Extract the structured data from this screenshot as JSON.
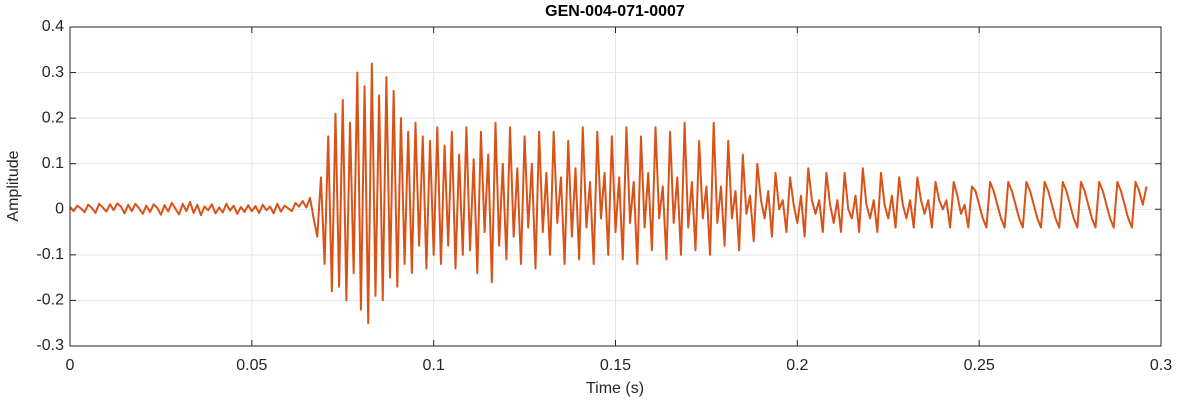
{
  "chart_data": {
    "type": "line",
    "title": "GEN-004-071-0007",
    "x_label": "Time (s)",
    "y_label": "Amplitude",
    "xlim": [
      0,
      0.3
    ],
    "xticks": [
      0,
      0.05,
      0.1,
      0.15,
      0.2,
      0.25,
      0.3
    ],
    "ylim": [
      -0.3,
      0.4
    ],
    "yticks": [
      -0.3,
      -0.2,
      -0.1,
      0,
      0.1,
      0.2,
      0.3,
      0.4
    ],
    "grid": true,
    "x": [
      0,
      0.001,
      0.002,
      0.003,
      0.004,
      0.005,
      0.006,
      0.007,
      0.008,
      0.009,
      0.01,
      0.011,
      0.012,
      0.013,
      0.014,
      0.015,
      0.016,
      0.017,
      0.018,
      0.019,
      0.02,
      0.021,
      0.022,
      0.023,
      0.024,
      0.025,
      0.026,
      0.027,
      0.028,
      0.029,
      0.03,
      0.031,
      0.032,
      0.033,
      0.034,
      0.035,
      0.036,
      0.037,
      0.038,
      0.039,
      0.04,
      0.041,
      0.042,
      0.043,
      0.044,
      0.045,
      0.046,
      0.047,
      0.048,
      0.049,
      0.05,
      0.051,
      0.052,
      0.053,
      0.054,
      0.055,
      0.056,
      0.057,
      0.058,
      0.059,
      0.06,
      0.061,
      0.062,
      0.063,
      0.064,
      0.065,
      0.066,
      0.067,
      0.068,
      0.069,
      0.07,
      0.071,
      0.072,
      0.073,
      0.074,
      0.075,
      0.076,
      0.077,
      0.078,
      0.079,
      0.08,
      0.081,
      0.082,
      0.083,
      0.084,
      0.085,
      0.086,
      0.087,
      0.088,
      0.089,
      0.09,
      0.091,
      0.092,
      0.093,
      0.094,
      0.095,
      0.096,
      0.097,
      0.098,
      0.099,
      0.1,
      0.101,
      0.102,
      0.103,
      0.104,
      0.105,
      0.106,
      0.107,
      0.108,
      0.109,
      0.11,
      0.111,
      0.112,
      0.113,
      0.114,
      0.115,
      0.116,
      0.117,
      0.118,
      0.119,
      0.12,
      0.121,
      0.122,
      0.123,
      0.124,
      0.125,
      0.126,
      0.127,
      0.128,
      0.129,
      0.13,
      0.131,
      0.132,
      0.133,
      0.134,
      0.135,
      0.136,
      0.137,
      0.138,
      0.139,
      0.14,
      0.141,
      0.142,
      0.143,
      0.144,
      0.145,
      0.146,
      0.147,
      0.148,
      0.149,
      0.15,
      0.151,
      0.152,
      0.153,
      0.154,
      0.155,
      0.156,
      0.157,
      0.158,
      0.159,
      0.16,
      0.161,
      0.162,
      0.163,
      0.164,
      0.165,
      0.166,
      0.167,
      0.168,
      0.169,
      0.17,
      0.171,
      0.172,
      0.173,
      0.174,
      0.175,
      0.176,
      0.177,
      0.178,
      0.179,
      0.18,
      0.181,
      0.182,
      0.183,
      0.184,
      0.185,
      0.186,
      0.187,
      0.188,
      0.189,
      0.19,
      0.191,
      0.192,
      0.193,
      0.194,
      0.195,
      0.196,
      0.197,
      0.198,
      0.199,
      0.2,
      0.201,
      0.202,
      0.203,
      0.204,
      0.205,
      0.206,
      0.207,
      0.208,
      0.209,
      0.21,
      0.211,
      0.212,
      0.213,
      0.214,
      0.215,
      0.216,
      0.217,
      0.218,
      0.219,
      0.22,
      0.221,
      0.222,
      0.223,
      0.224,
      0.225,
      0.226,
      0.227,
      0.228,
      0.229,
      0.23,
      0.231,
      0.232,
      0.233,
      0.234,
      0.235,
      0.236,
      0.237,
      0.238,
      0.239,
      0.24,
      0.241,
      0.242,
      0.243,
      0.244,
      0.245,
      0.246,
      0.247,
      0.248,
      0.249,
      0.25,
      0.251,
      0.252,
      0.253,
      0.254,
      0.255,
      0.256,
      0.257,
      0.258,
      0.259,
      0.26,
      0.261,
      0.262,
      0.263,
      0.264,
      0.265,
      0.266,
      0.267,
      0.268,
      0.269,
      0.27,
      0.271,
      0.272,
      0.273,
      0.274,
      0.275,
      0.276,
      0.277,
      0.278,
      0.279,
      0.28,
      0.281,
      0.282,
      0.283,
      0.284,
      0.285,
      0.286,
      0.287,
      0.288,
      0.289,
      0.29,
      0.291,
      0.292,
      0.293,
      0.294,
      0.295,
      0.296
    ],
    "series": [
      {
        "color": "#d95319",
        "values": [
          0.005,
          -0.004,
          0.008,
          0.002,
          -0.006,
          0.01,
          0.003,
          -0.008,
          0.012,
          0.004,
          -0.005,
          0.011,
          -0.002,
          0.013,
          0.006,
          -0.009,
          0.01,
          -0.004,
          0.012,
          0.002,
          -0.01,
          0.008,
          -0.006,
          0.011,
          0.003,
          -0.012,
          0.009,
          -0.005,
          0.014,
          0.001,
          -0.011,
          0.012,
          -0.004,
          0.016,
          -0.008,
          0.01,
          -0.013,
          0.006,
          -0.002,
          0.011,
          -0.009,
          0.004,
          -0.007,
          0.012,
          -0.003,
          0.008,
          -0.01,
          0.005,
          -0.006,
          0.009,
          -0.004,
          0.007,
          -0.008,
          0.01,
          -0.002,
          0.006,
          -0.009,
          0.012,
          -0.005,
          0.008,
          0.002,
          -0.004,
          0.014,
          0.006,
          0.018,
          0.004,
          0.025,
          -0.02,
          -0.06,
          0.07,
          -0.12,
          0.16,
          -0.18,
          0.21,
          -0.17,
          0.24,
          -0.2,
          0.19,
          -0.14,
          0.3,
          -0.22,
          0.27,
          -0.25,
          0.32,
          -0.19,
          0.25,
          -0.2,
          0.29,
          -0.15,
          0.26,
          -0.17,
          0.2,
          -0.12,
          0.17,
          -0.14,
          0.19,
          -0.08,
          0.16,
          -0.13,
          0.15,
          -0.1,
          0.18,
          -0.12,
          0.14,
          -0.08,
          0.17,
          -0.13,
          0.12,
          -0.1,
          0.18,
          -0.09,
          0.11,
          -0.14,
          0.17,
          -0.05,
          0.12,
          -0.16,
          0.19,
          -0.08,
          0.1,
          -0.11,
          0.18,
          -0.06,
          0.09,
          -0.12,
          0.16,
          -0.04,
          0.1,
          -0.13,
          0.17,
          -0.05,
          0.08,
          -0.1,
          0.17,
          -0.03,
          0.07,
          -0.12,
          0.15,
          -0.06,
          0.09,
          -0.11,
          0.18,
          -0.04,
          0.06,
          -0.12,
          0.17,
          -0.02,
          0.08,
          -0.1,
          0.16,
          -0.05,
          0.07,
          -0.11,
          0.18,
          -0.03,
          0.06,
          -0.12,
          0.16,
          -0.04,
          0.08,
          -0.09,
          0.18,
          -0.02,
          0.05,
          -0.11,
          0.17,
          -0.03,
          0.07,
          -0.1,
          0.19,
          -0.04,
          0.06,
          -0.09,
          0.15,
          -0.02,
          0.05,
          -0.1,
          0.19,
          -0.03,
          0.05,
          -0.08,
          0.15,
          -0.02,
          0.04,
          -0.09,
          0.12,
          -0.01,
          0.03,
          -0.07,
          0.1,
          0.02,
          -0.02,
          0.04,
          -0.06,
          0.08,
          0,
          0.02,
          -0.05,
          0.07,
          0.01,
          -0.03,
          0.03,
          -0.06,
          0.09,
          0.02,
          -0.01,
          0.02,
          -0.05,
          0.08,
          0.01,
          -0.03,
          0.02,
          -0.05,
          0.08,
          0,
          -0.02,
          0.03,
          -0.05,
          0.09,
          0.01,
          -0.02,
          0.02,
          -0.05,
          0.08,
          0.01,
          -0.02,
          0.03,
          -0.04,
          0.07,
          0.01,
          -0.02,
          0.02,
          -0.04,
          0.07,
          0.02,
          -0.01,
          0.02,
          -0.04,
          0.06,
          0.02,
          0,
          0.02,
          -0.04,
          0.06,
          0.03,
          -0.01,
          0.01,
          -0.04,
          0.05,
          0.04,
          0.01,
          -0.02,
          -0.04,
          0.06,
          0.04,
          0.01,
          -0.02,
          -0.04,
          0.06,
          0.04,
          0.01,
          -0.02,
          -0.04,
          0.06,
          0.04,
          0.01,
          -0.02,
          -0.04,
          0.06,
          0.04,
          0.01,
          -0.02,
          -0.04,
          0.06,
          0.04,
          0.01,
          -0.02,
          -0.04,
          0.06,
          0.04,
          0.01,
          -0.02,
          -0.04,
          0.06,
          0.04,
          0.01,
          -0.02,
          -0.04,
          0.06,
          0.04,
          0.01,
          -0.02,
          -0.04,
          0.06,
          0.04,
          0.01,
          0.05
        ]
      }
    ]
  }
}
